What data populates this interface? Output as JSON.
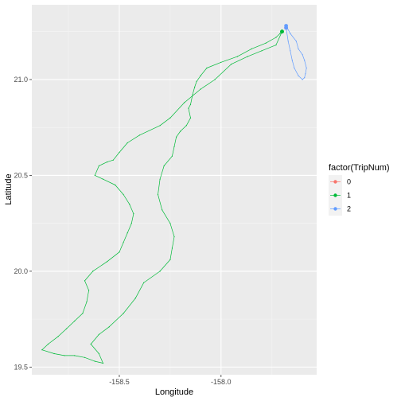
{
  "chart_data": {
    "type": "line",
    "title": "",
    "xlabel": "Longitude",
    "ylabel": "Latitude",
    "xlim": [
      -158.93,
      -157.53
    ],
    "ylim": [
      19.46,
      21.39
    ],
    "x_ticks": [
      -158.5,
      -158.0
    ],
    "x_tick_labels": [
      "-158.5",
      "-158.0"
    ],
    "y_ticks": [
      19.5,
      20.0,
      20.5,
      21.0
    ],
    "y_tick_labels": [
      "19.5",
      "20.0",
      "20.5",
      "21.0"
    ],
    "grid": true,
    "legend_position": "right",
    "legend": {
      "title": "factor(TripNum)",
      "entries": [
        {
          "label": "0",
          "color": "#F8766D"
        },
        {
          "label": "1",
          "color": "#00BA38"
        },
        {
          "label": "2",
          "color": "#619CFF"
        }
      ]
    },
    "series": [
      {
        "name": "0",
        "color": "#F8766D",
        "x": [
          -157.68
        ],
        "y": [
          21.27
        ]
      },
      {
        "name": "1",
        "color": "#00BA38",
        "x": [
          -157.7,
          -157.73,
          -157.8,
          -157.87,
          -157.95,
          -158.03,
          -158.1,
          -158.18,
          -158.25,
          -158.3,
          -158.4,
          -158.46,
          -158.5,
          -158.53,
          -158.56,
          -158.6,
          -158.62,
          -158.58,
          -158.52,
          -158.48,
          -158.45,
          -158.43,
          -158.44,
          -158.46,
          -158.48,
          -158.5,
          -158.56,
          -158.63,
          -158.67,
          -158.65,
          -158.66,
          -158.68,
          -158.72,
          -158.76,
          -158.8,
          -158.85,
          -158.88,
          -158.82,
          -158.77,
          -158.72,
          -158.67,
          -158.62,
          -158.58,
          -158.6,
          -158.64,
          -158.6,
          -158.55,
          -158.48,
          -158.42,
          -158.38,
          -158.3,
          -158.25,
          -158.24,
          -158.23,
          -158.25,
          -158.29,
          -158.31,
          -158.3,
          -158.28,
          -158.24,
          -158.23,
          -158.22,
          -158.2,
          -158.17,
          -158.15,
          -158.16,
          -158.15,
          -158.14,
          -158.13,
          -158.12,
          -158.1,
          -158.07,
          -158.0,
          -157.92,
          -157.85,
          -157.78,
          -157.73,
          -157.71,
          -157.7
        ],
        "y": [
          21.25,
          21.18,
          21.15,
          21.12,
          21.08,
          21.0,
          20.95,
          20.88,
          20.8,
          20.76,
          20.71,
          20.67,
          20.62,
          20.58,
          20.57,
          20.55,
          20.5,
          20.48,
          20.45,
          20.4,
          20.35,
          20.3,
          20.25,
          20.2,
          20.15,
          20.1,
          20.05,
          20.0,
          19.95,
          19.9,
          19.84,
          19.78,
          19.74,
          19.7,
          19.66,
          19.62,
          19.59,
          19.57,
          19.56,
          19.56,
          19.55,
          19.53,
          19.52,
          19.57,
          19.62,
          19.67,
          19.71,
          19.78,
          19.86,
          19.94,
          20.0,
          20.06,
          20.12,
          20.18,
          20.25,
          20.32,
          20.4,
          20.48,
          20.55,
          20.6,
          20.65,
          20.7,
          20.73,
          20.76,
          20.8,
          20.85,
          20.87,
          20.92,
          20.96,
          20.99,
          21.02,
          21.06,
          21.09,
          21.12,
          21.16,
          21.19,
          21.22,
          21.24,
          21.25
        ]
      },
      {
        "name": "2",
        "color": "#619CFF",
        "x": [
          -157.68,
          -157.66,
          -157.63,
          -157.62,
          -157.6,
          -157.59,
          -157.58,
          -157.585,
          -157.59,
          -157.6,
          -157.62,
          -157.64,
          -157.65,
          -157.66,
          -157.67,
          -157.68
        ],
        "y": [
          21.28,
          21.24,
          21.2,
          21.16,
          21.13,
          21.1,
          21.06,
          21.03,
          21.01,
          21.0,
          21.02,
          21.06,
          21.1,
          21.15,
          21.2,
          21.27
        ]
      }
    ]
  }
}
